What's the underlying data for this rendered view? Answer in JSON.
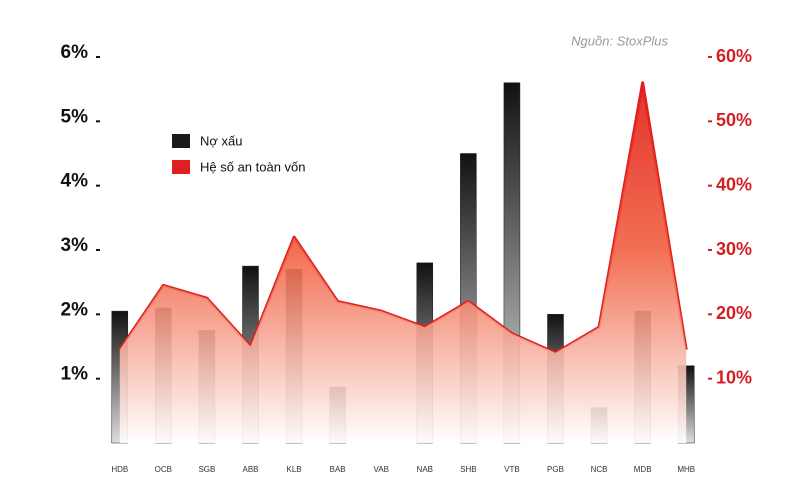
{
  "chart_data": {
    "type": "bar-line",
    "source": "Nguồn: StoxPlus",
    "categories": [
      "HDB",
      "OCB",
      "SGB",
      "ABB",
      "KLB",
      "BAB",
      "VAB",
      "NAB",
      "SHB",
      "VTB",
      "PGB",
      "NCB",
      "MDB",
      "MHB"
    ],
    "series": [
      {
        "name": "Nợ xấu",
        "color": "#1a1a1a",
        "type": "bar",
        "values": [
          2.05,
          2.1,
          1.75,
          2.75,
          2.7,
          0.87,
          null,
          2.8,
          4.5,
          5.6,
          2.0,
          0.55,
          2.05,
          1.2
        ]
      },
      {
        "name": "Hệ số an toàn vốn",
        "color": "#e02020",
        "type": "line",
        "axis": "y2",
        "values": [
          14.5,
          24.5,
          22.5,
          15,
          32,
          22,
          20.5,
          18,
          22,
          17,
          14,
          18,
          56,
          14.5
        ]
      }
    ],
    "ylim": [
      0,
      6
    ],
    "yticks": [
      {
        "value": 1,
        "label": "1%"
      },
      {
        "value": 2,
        "label": "2%"
      },
      {
        "value": 3,
        "label": "3%"
      },
      {
        "value": 4,
        "label": "4%"
      },
      {
        "value": 5,
        "label": "5%"
      },
      {
        "value": 6,
        "label": "6%"
      }
    ],
    "y2lim": [
      0,
      60
    ],
    "y2ticks": [
      {
        "value": 10,
        "label": "10%"
      },
      {
        "value": 20,
        "label": "20%"
      },
      {
        "value": 30,
        "label": "30%"
      },
      {
        "value": 40,
        "label": "40%"
      },
      {
        "value": 50,
        "label": "50%"
      },
      {
        "value": 60,
        "label": "60%"
      }
    ]
  }
}
